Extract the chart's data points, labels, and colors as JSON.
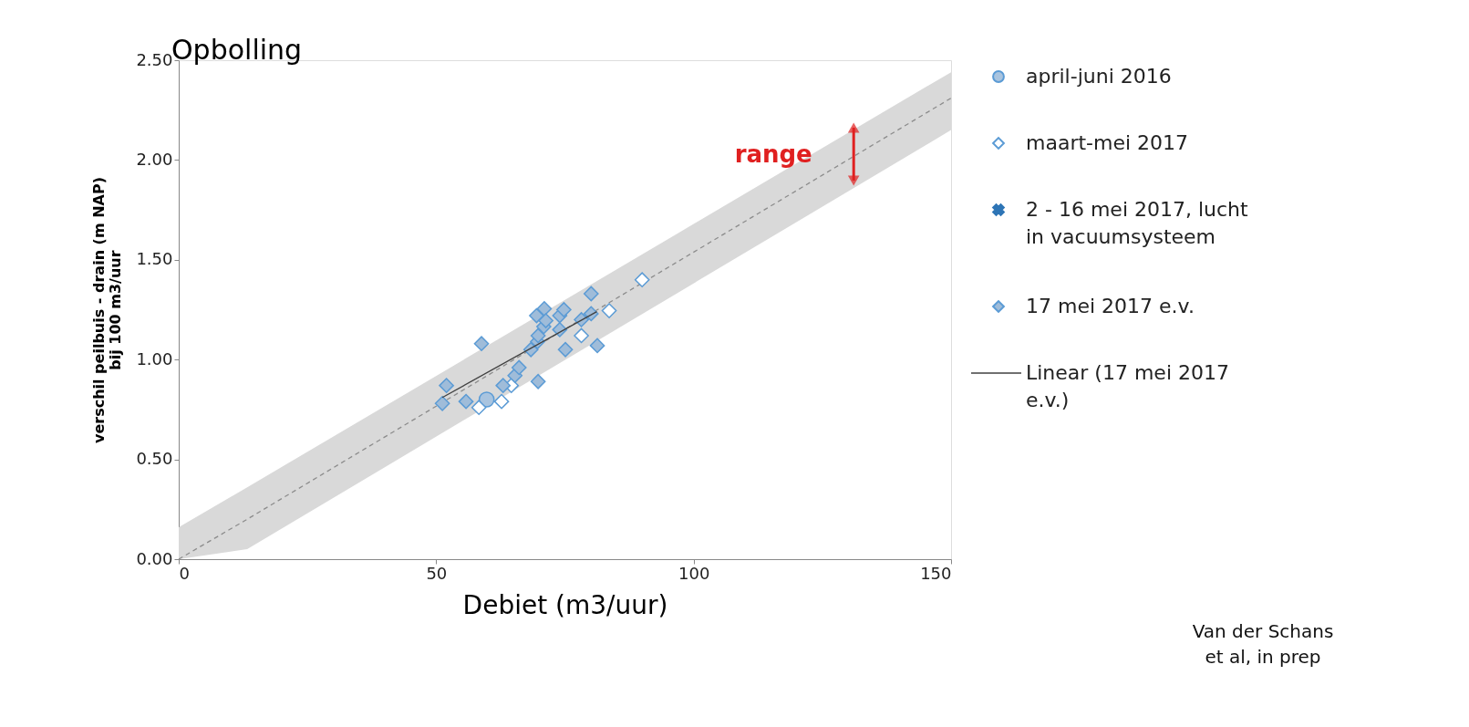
{
  "chart_data": {
    "type": "scatter",
    "title": "Opbolling",
    "xlabel": "Debiet (m3/uur)",
    "ylabel": "verschil peilbuis - drain (m NAP)\nbij 100 m3/uur",
    "xlim": [
      0,
      150
    ],
    "xticks": [
      0,
      50,
      100,
      150
    ],
    "ylim": [
      0,
      2.5
    ],
    "yticks": [
      {
        "value": 0,
        "label": "0.00"
      },
      {
        "value": 0.5,
        "label": "0.50"
      },
      {
        "value": 1,
        "label": "1.00"
      },
      {
        "value": 1.5,
        "label": "1.50"
      },
      {
        "value": 2,
        "label": "2.00"
      },
      {
        "value": 2.5,
        "label": "2.50"
      }
    ],
    "grid": false,
    "legend": "right",
    "series": [
      {
        "type": "line",
        "line_style": "dashed",
        "color": "#8c8c8c",
        "x": [
          0,
          13.3,
          150
        ],
        "values": [
          0,
          0.2,
          2.31
        ],
        "lower": [
          0,
          0.05,
          2.15
        ],
        "upper": [
          0.16,
          0.36,
          2.44
        ]
      },
      {
        "name": "april-juni 2016",
        "marker": "circle",
        "color": "#a9c4df",
        "x": [
          59.8
        ],
        "values": [
          0.8
        ]
      },
      {
        "name": "maart-mei 2017",
        "marker": "diamond",
        "color": "#ffffff",
        "x": [
          90.0,
          83.6,
          78.2,
          62.7,
          58.3,
          64.6
        ],
        "values": [
          1.4,
          1.245,
          1.12,
          0.79,
          0.76,
          0.87
        ]
      },
      {
        "name": "2 - 16 mei 2017, lucht in vacuumsysteem",
        "marker": "cross",
        "color": "#2e75b6"
      },
      {
        "name": "17 mei 2017 e.v.",
        "marker": "diamond",
        "color": "#9fbcd9",
        "x": [
          51.2,
          52.0,
          55.8,
          58.8,
          63.0,
          65.3,
          66.1,
          68.4,
          69.7,
          69.8,
          69.8,
          69.5,
          71.0,
          70.9,
          71.3,
          74.0,
          74.0,
          74.8,
          75.1,
          80.1,
          80.1,
          81.3,
          78.2
        ],
        "values": [
          0.78,
          0.87,
          0.79,
          1.08,
          0.87,
          0.92,
          0.96,
          1.05,
          1.09,
          1.12,
          0.89,
          1.22,
          1.255,
          1.165,
          1.195,
          1.15,
          1.22,
          1.25,
          1.05,
          1.33,
          1.23,
          1.07,
          1.2
        ]
      },
      {
        "name": "Linear (17 mei 2017 e.v.)",
        "type": "line",
        "line_style": "solid",
        "color": "#404040",
        "x": [
          51.2,
          81.2
        ],
        "values": [
          0.81,
          1.24
        ]
      }
    ],
    "annotations": [
      "range",
      "Van der Schans et al, in prep"
    ]
  }
}
